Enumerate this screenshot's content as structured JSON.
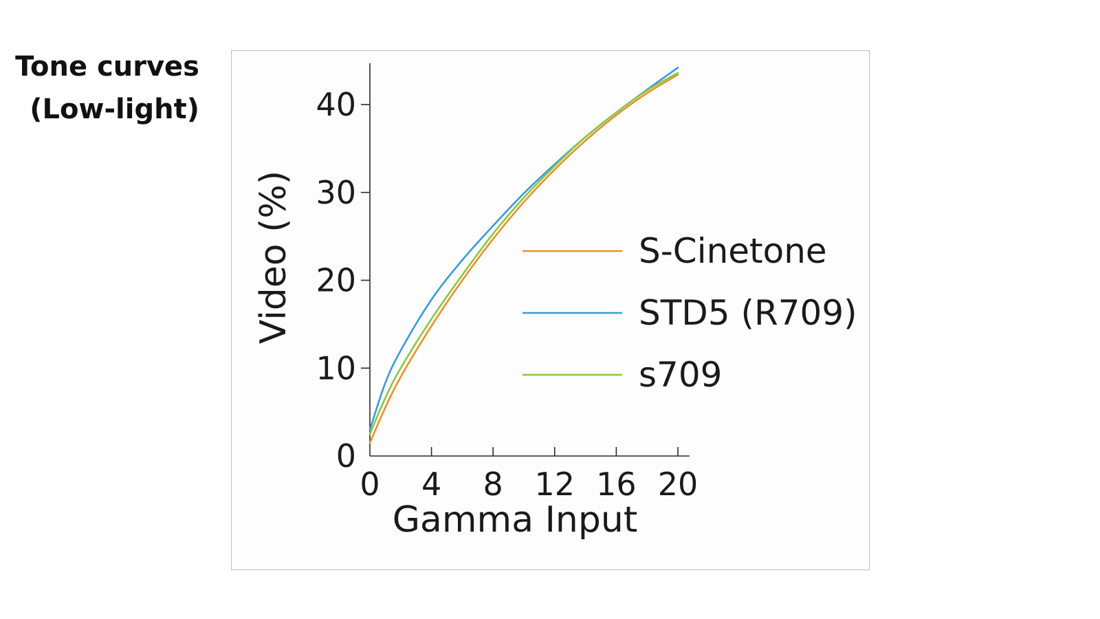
{
  "title": {
    "line1": "Tone curves",
    "line2": "(Low-light)"
  },
  "chart_data": {
    "type": "line",
    "xlabel": "Gamma Input",
    "ylabel": "Video (%)",
    "xlim": [
      0,
      20
    ],
    "ylim": [
      0,
      44
    ],
    "xticks": [
      0,
      4,
      8,
      12,
      16,
      20
    ],
    "yticks": [
      0,
      10,
      20,
      30,
      40
    ],
    "grid": false,
    "legend": "center-right",
    "series": [
      {
        "name": "S-Cinetone",
        "color": "#e8922c",
        "x": [
          0,
          1,
          2,
          4,
          6,
          8,
          10,
          12,
          14,
          16,
          18,
          20
        ],
        "y": [
          1.5,
          5.5,
          9.0,
          14.8,
          20.0,
          24.7,
          28.9,
          32.6,
          35.9,
          38.8,
          41.3,
          43.4
        ]
      },
      {
        "name": "STD5 (R709)",
        "color": "#3a9ad9",
        "x": [
          0,
          1,
          2,
          4,
          6,
          8,
          10,
          12,
          14,
          16,
          18,
          20
        ],
        "y": [
          3.0,
          8.3,
          12.0,
          17.8,
          22.3,
          26.2,
          29.9,
          33.2,
          36.3,
          39.1,
          41.7,
          44.2
        ]
      },
      {
        "name": "s709",
        "color": "#8dc63f",
        "x": [
          0,
          1,
          2,
          4,
          6,
          8,
          10,
          12,
          14,
          16,
          18,
          20
        ],
        "y": [
          2.5,
          6.6,
          10.0,
          15.6,
          20.6,
          25.3,
          29.4,
          33.0,
          36.3,
          39.1,
          41.6,
          43.6
        ]
      }
    ]
  }
}
